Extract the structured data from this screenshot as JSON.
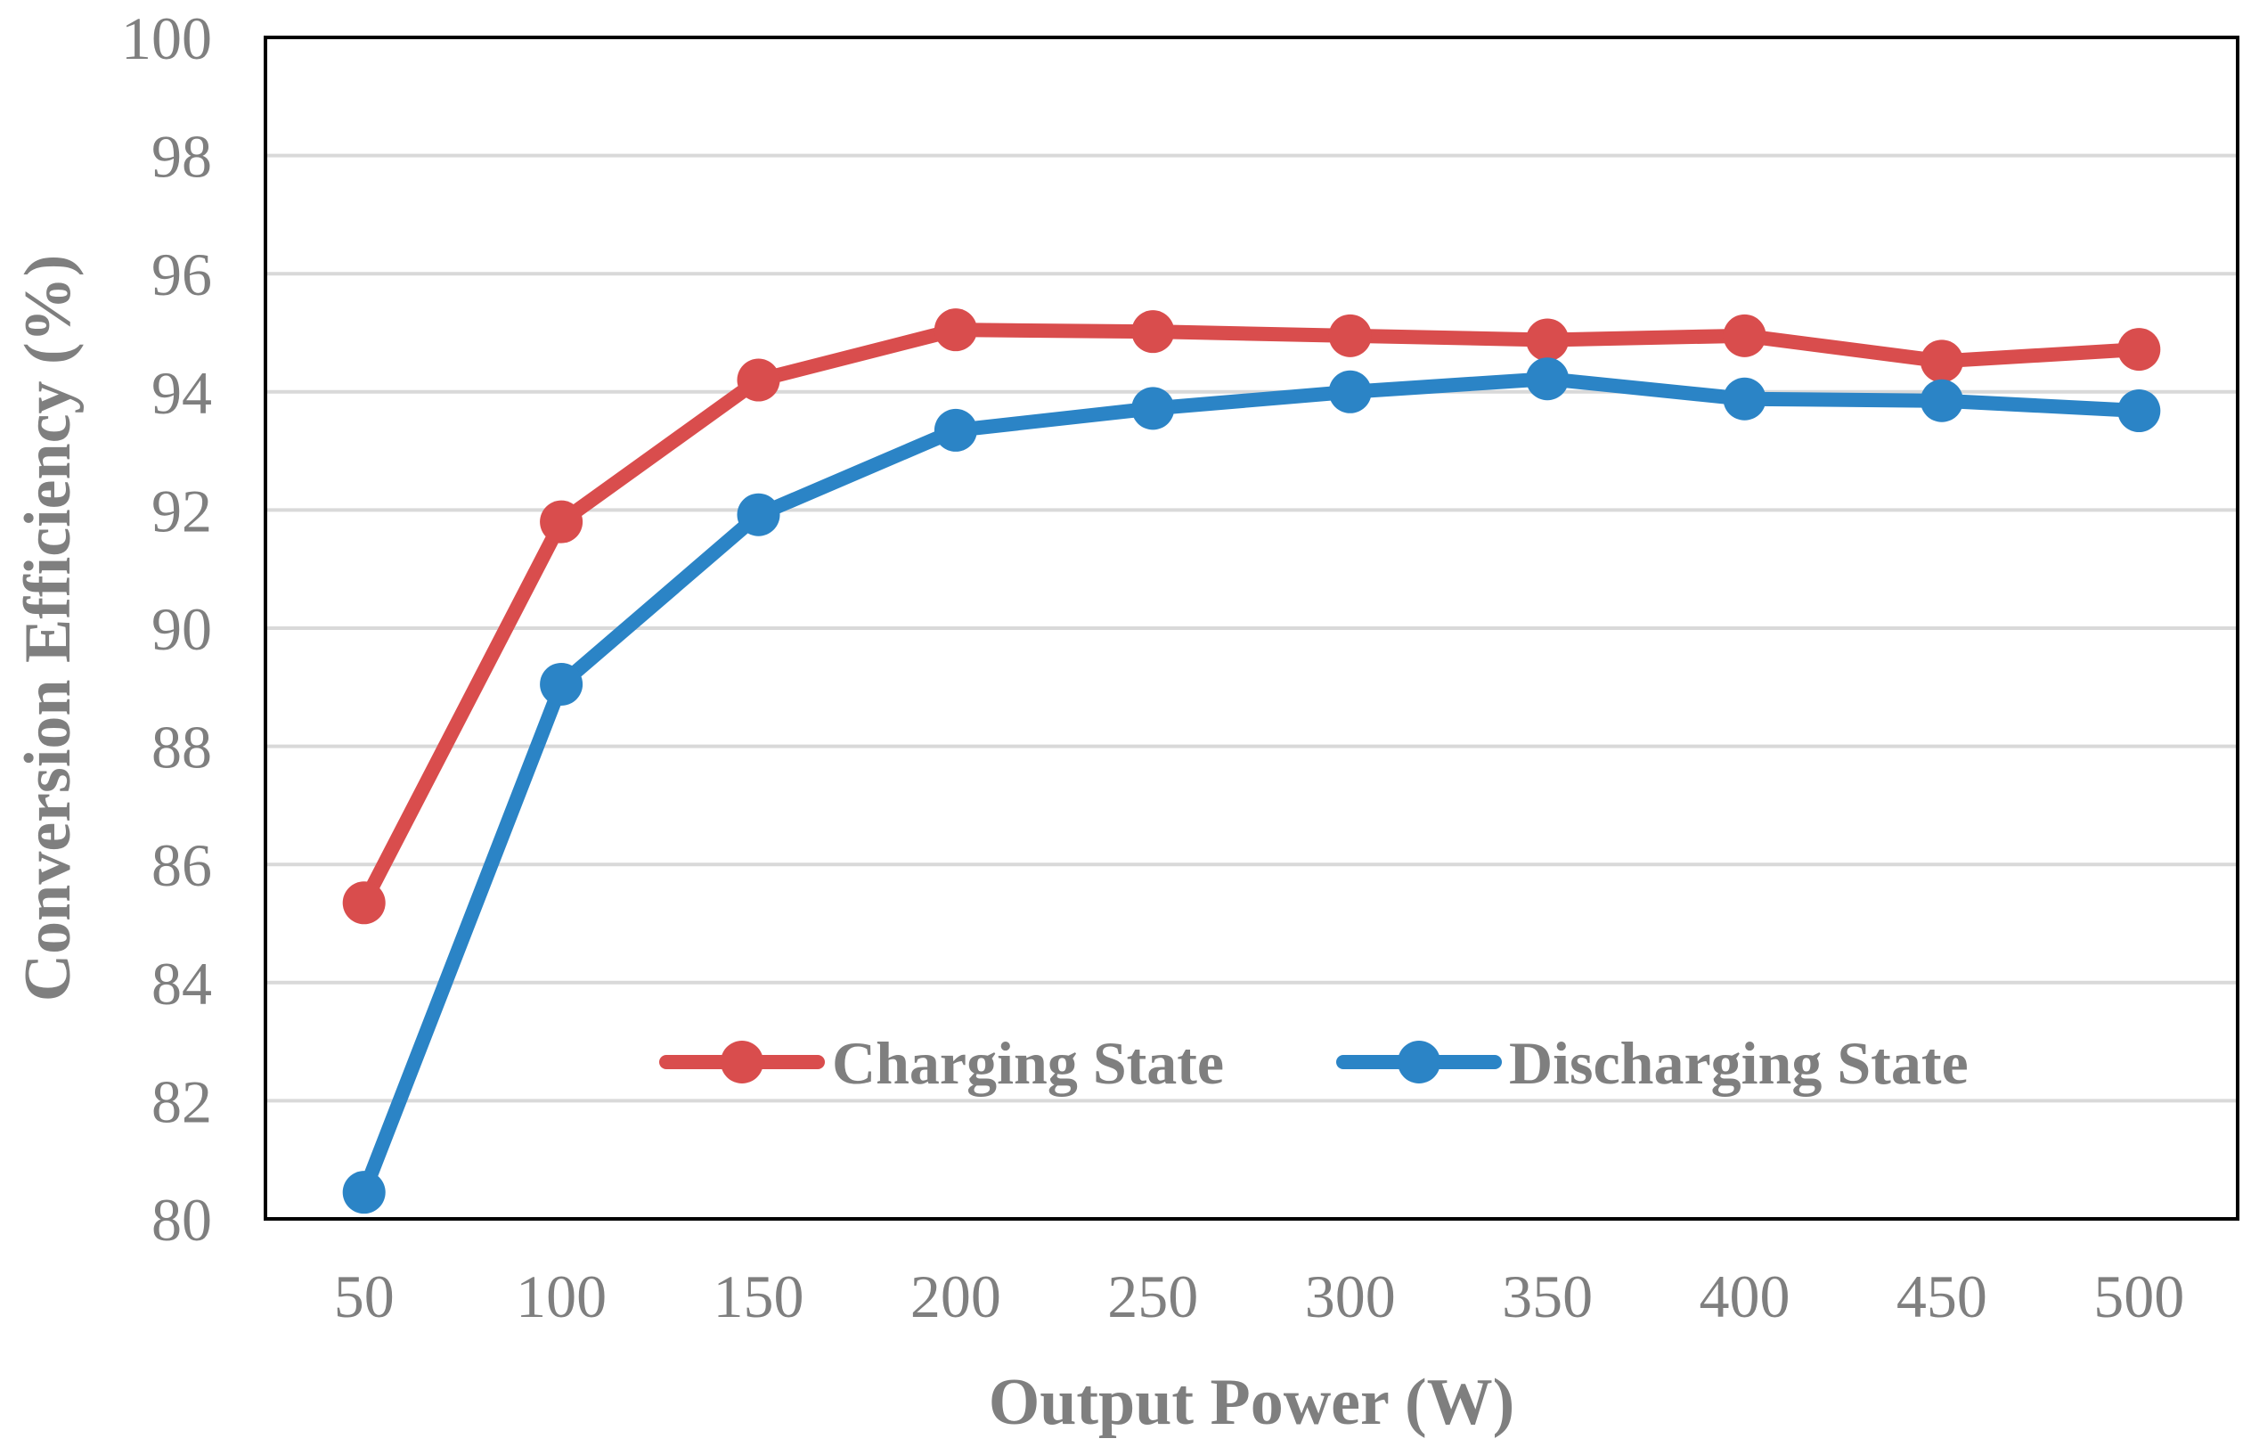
{
  "chart_data": {
    "type": "line",
    "xlabel": "Output Power (W)",
    "ylabel": "Conversion Efficiency (%)",
    "categories": [
      "50",
      "100",
      "150",
      "200",
      "250",
      "300",
      "350",
      "400",
      "450",
      "500"
    ],
    "x": [
      50,
      100,
      150,
      200,
      250,
      300,
      350,
      400,
      450,
      500
    ],
    "ylim": [
      80,
      100
    ],
    "yticks": [
      "80",
      "82",
      "84",
      "86",
      "88",
      "90",
      "92",
      "94",
      "96",
      "98",
      "100"
    ],
    "grid": true,
    "legend_position": "bottom-right",
    "series": [
      {
        "name": "Charging State",
        "color": "#d94d4d",
        "values": [
          85.35,
          91.8,
          94.2,
          95.05,
          95.02,
          94.95,
          94.88,
          94.95,
          94.52,
          94.72
        ]
      },
      {
        "name": "Discharging State",
        "color": "#2b84c6",
        "values": [
          80.45,
          89.05,
          91.92,
          93.35,
          93.72,
          94.0,
          94.22,
          93.88,
          93.85,
          93.68
        ]
      }
    ]
  }
}
